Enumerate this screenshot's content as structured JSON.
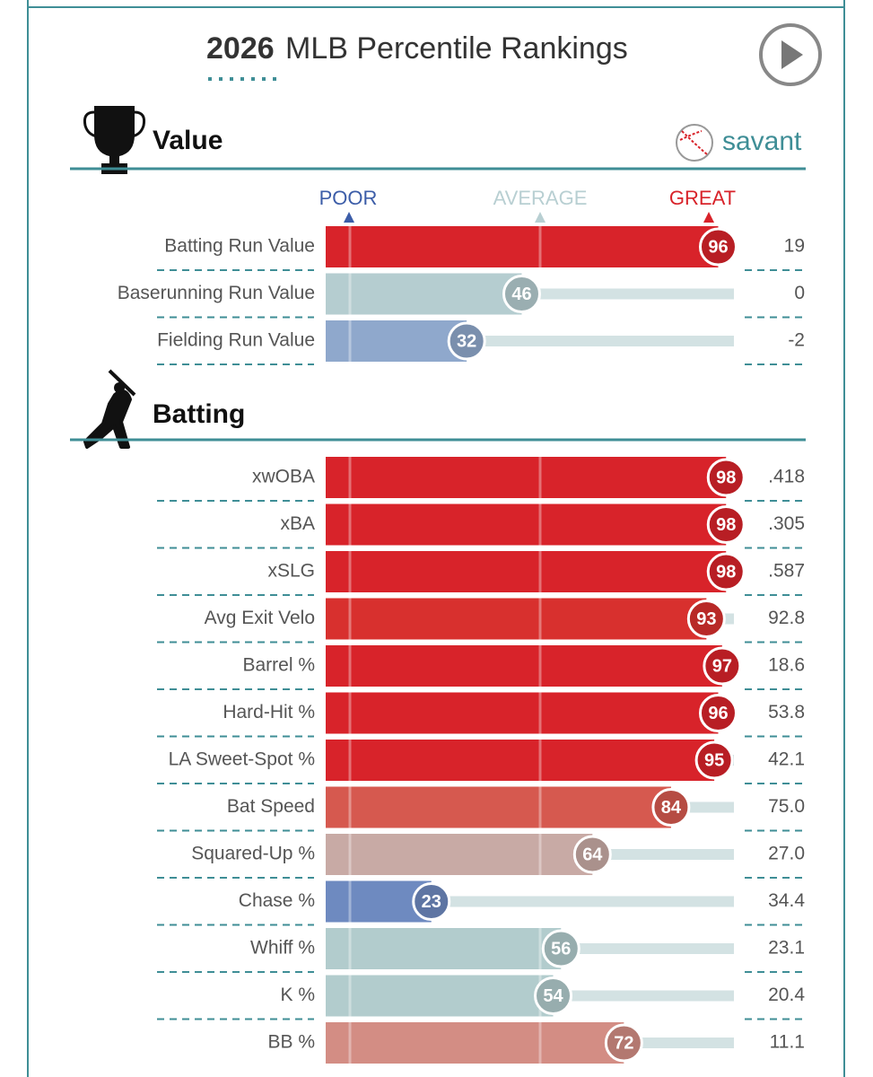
{
  "header": {
    "year": "2026",
    "title": "MLB Percentile Rankings"
  },
  "brand": "savant",
  "scale": {
    "labels": [
      "POOR",
      "AVERAGE",
      "GREAT"
    ]
  },
  "xlim": [
    0,
    100
  ],
  "sections": [
    {
      "title": "Value",
      "rows": [
        {
          "label": "Batting Run Value",
          "percentile": 96,
          "value": 19,
          "color": "#d8232a"
        },
        {
          "label": "Baserunning Run Value",
          "percentile": 46,
          "value": 0,
          "color": "#b5cdd0"
        },
        {
          "label": "Fielding Run Value",
          "percentile": 32,
          "value": -2,
          "color": "#8fa8cc"
        }
      ]
    },
    {
      "title": "Batting",
      "rows": [
        {
          "label": "xwOBA",
          "percentile": 98,
          "value": ".418",
          "color": "#d8232a"
        },
        {
          "label": "xBA",
          "percentile": 98,
          "value": ".305",
          "color": "#d8232a"
        },
        {
          "label": "xSLG",
          "percentile": 98,
          "value": ".587",
          "color": "#d8232a"
        },
        {
          "label": "Avg Exit Velo",
          "percentile": 93,
          "value": 92.8,
          "color": "#d8302e"
        },
        {
          "label": "Barrel %",
          "percentile": 97,
          "value": 18.6,
          "color": "#d8232a"
        },
        {
          "label": "Hard-Hit %",
          "percentile": 96,
          "value": 53.8,
          "color": "#d8232a"
        },
        {
          "label": "LA Sweet-Spot %",
          "percentile": 95,
          "value": 42.1,
          "color": "#d8232a"
        },
        {
          "label": "Bat Speed",
          "percentile": 84,
          "value": "75.0",
          "color": "#d6594f"
        },
        {
          "label": "Squared-Up %",
          "percentile": 64,
          "value": "27.0",
          "color": "#c8aaa5"
        },
        {
          "label": "Chase %",
          "percentile": 23,
          "value": 34.4,
          "color": "#6e8ac0"
        },
        {
          "label": "Whiff %",
          "percentile": 56,
          "value": 23.1,
          "color": "#b2cccd"
        },
        {
          "label": "K %",
          "percentile": 54,
          "value": 20.4,
          "color": "#b2cccd"
        },
        {
          "label": "BB %",
          "percentile": 72,
          "value": 11.1,
          "color": "#d38d84"
        }
      ]
    }
  ]
}
